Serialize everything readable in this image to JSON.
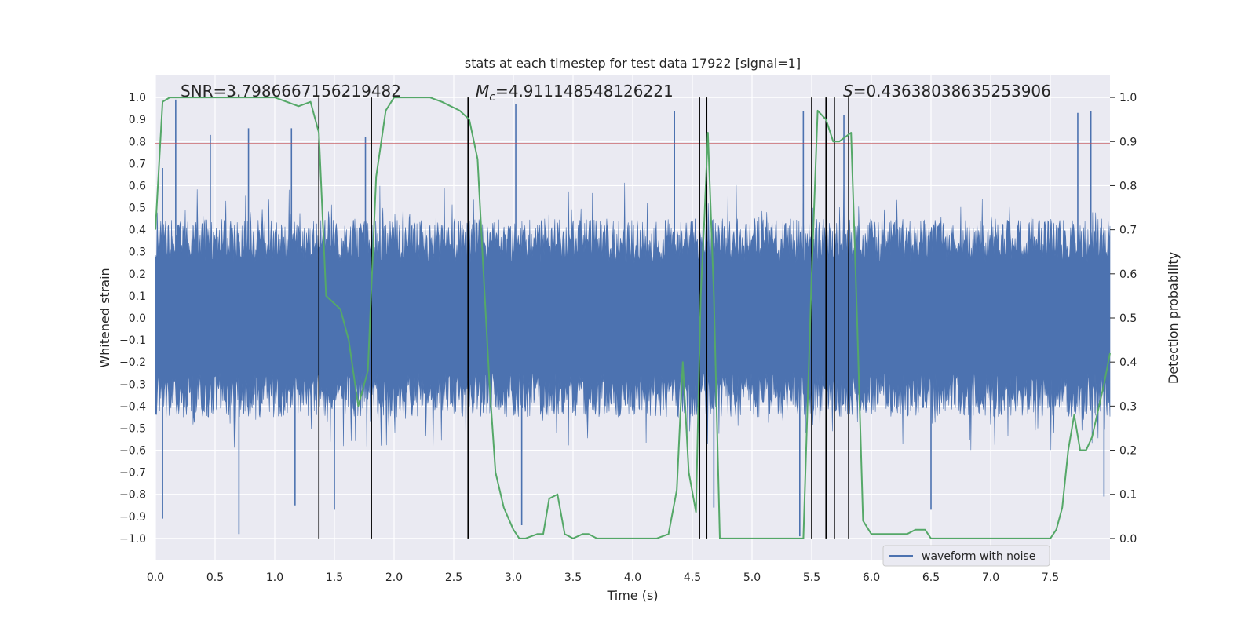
{
  "chart_data": {
    "type": "line",
    "title": "stats at each timestep for test data 17922 [signal=1]",
    "xlabel": "Time (s)",
    "ylabel": "Whitened strain",
    "y2label": "Detection probability",
    "xlim": [
      0.0,
      8.0
    ],
    "ylim": [
      -1.1,
      1.1
    ],
    "y2lim": [
      -0.05,
      1.05
    ],
    "xticks": [
      "0.0",
      "0.5",
      "1.0",
      "1.5",
      "2.0",
      "2.5",
      "3.0",
      "3.5",
      "4.0",
      "4.5",
      "5.0",
      "5.5",
      "6.0",
      "6.5",
      "7.0",
      "7.5"
    ],
    "yticks": [
      "1.0",
      "0.9",
      "0.8",
      "0.7",
      "0.6",
      "0.5",
      "0.4",
      "0.3",
      "0.2",
      "0.1",
      "0.0",
      "−0.1",
      "−0.2",
      "−0.3",
      "−0.4",
      "−0.5",
      "−0.6",
      "−0.7",
      "−0.8",
      "−0.9",
      "−1.0"
    ],
    "y2ticks": [
      "1.0",
      "0.9",
      "0.8",
      "0.7",
      "0.6",
      "0.5",
      "0.4",
      "0.3",
      "0.2",
      "0.1",
      "0.0"
    ],
    "annotations": {
      "snr": "SNR=3.7986667156219482",
      "mc_symbol": "M",
      "mc_sub": "c",
      "mc_value": "=4.911148548126221",
      "s_symbol": "S",
      "s_value": "=0.43638038635253906"
    },
    "legend": {
      "label": "waveform with noise",
      "position": "lower-right"
    },
    "threshold_line": {
      "value_strain": 0.79,
      "color": "#c44e52"
    },
    "detection_markers_s": [
      1.37,
      1.81,
      2.62,
      4.56,
      4.62,
      5.5,
      5.62,
      5.69,
      5.81
    ],
    "waveform": {
      "name": "waveform with noise",
      "color": "#4c72b0",
      "samples": 1600,
      "seed": 17922,
      "amplitude_envelope": 0.45,
      "spikes": [
        {
          "x": 0.06,
          "y": 0.68
        },
        {
          "x": 0.17,
          "y": 0.99
        },
        {
          "x": 0.46,
          "y": 0.83
        },
        {
          "x": 0.78,
          "y": 0.86
        },
        {
          "x": 1.14,
          "y": 0.86
        },
        {
          "x": 1.76,
          "y": 0.82
        },
        {
          "x": 3.02,
          "y": 0.97
        },
        {
          "x": 4.35,
          "y": 0.94
        },
        {
          "x": 5.43,
          "y": 0.94
        },
        {
          "x": 5.77,
          "y": 0.92
        },
        {
          "x": 7.73,
          "y": 0.93
        },
        {
          "x": 7.84,
          "y": 0.94
        },
        {
          "x": 0.06,
          "y": -0.91
        },
        {
          "x": 0.7,
          "y": -0.98
        },
        {
          "x": 1.17,
          "y": -0.85
        },
        {
          "x": 1.5,
          "y": -0.87
        },
        {
          "x": 3.07,
          "y": -0.94
        },
        {
          "x": 4.68,
          "y": -0.86
        },
        {
          "x": 5.4,
          "y": -0.99
        },
        {
          "x": 6.5,
          "y": -0.87
        },
        {
          "x": 7.95,
          "y": -0.81
        }
      ]
    },
    "probability": {
      "name": "detection probability",
      "color": "#55a868",
      "x": [
        0.0,
        0.06,
        0.12,
        0.3,
        0.6,
        0.9,
        1.0,
        1.1,
        1.2,
        1.3,
        1.37,
        1.43,
        1.55,
        1.62,
        1.7,
        1.78,
        1.85,
        1.93,
        2.0,
        2.1,
        2.3,
        2.4,
        2.55,
        2.63,
        2.7,
        2.75,
        2.8,
        2.85,
        2.92,
        3.0,
        3.05,
        3.1,
        3.2,
        3.25,
        3.3,
        3.37,
        3.43,
        3.5,
        3.58,
        3.63,
        3.7,
        3.8,
        4.0,
        4.2,
        4.3,
        4.37,
        4.42,
        4.47,
        4.53,
        4.57,
        4.6,
        4.63,
        4.68,
        4.73,
        4.8,
        4.9,
        5.0,
        5.2,
        5.35,
        5.43,
        5.5,
        5.55,
        5.62,
        5.68,
        5.73,
        5.78,
        5.83,
        5.88,
        5.93,
        6.0,
        6.1,
        6.2,
        6.3,
        6.37,
        6.45,
        6.5,
        6.6,
        6.8,
        7.0,
        7.2,
        7.4,
        7.5,
        7.55,
        7.6,
        7.65,
        7.7,
        7.75,
        7.8,
        7.85,
        7.9,
        7.95,
        8.0
      ],
      "y": [
        0.7,
        0.99,
        1.0,
        1.0,
        1.0,
        1.0,
        1.0,
        0.99,
        0.98,
        0.99,
        0.92,
        0.55,
        0.52,
        0.45,
        0.3,
        0.38,
        0.82,
        0.97,
        1.0,
        1.0,
        1.0,
        0.99,
        0.97,
        0.95,
        0.86,
        0.6,
        0.35,
        0.15,
        0.07,
        0.02,
        0.0,
        0.0,
        0.01,
        0.01,
        0.09,
        0.1,
        0.01,
        0.0,
        0.01,
        0.01,
        0.0,
        0.0,
        0.0,
        0.0,
        0.01,
        0.11,
        0.4,
        0.15,
        0.06,
        0.55,
        0.72,
        0.92,
        0.55,
        0.0,
        0.0,
        0.0,
        0.0,
        0.0,
        0.0,
        0.0,
        0.6,
        0.97,
        0.95,
        0.9,
        0.9,
        0.91,
        0.92,
        0.5,
        0.04,
        0.01,
        0.01,
        0.01,
        0.01,
        0.02,
        0.02,
        0.0,
        0.0,
        0.0,
        0.0,
        0.0,
        0.0,
        0.0,
        0.02,
        0.07,
        0.2,
        0.28,
        0.2,
        0.2,
        0.23,
        0.29,
        0.35,
        0.42
      ]
    }
  }
}
